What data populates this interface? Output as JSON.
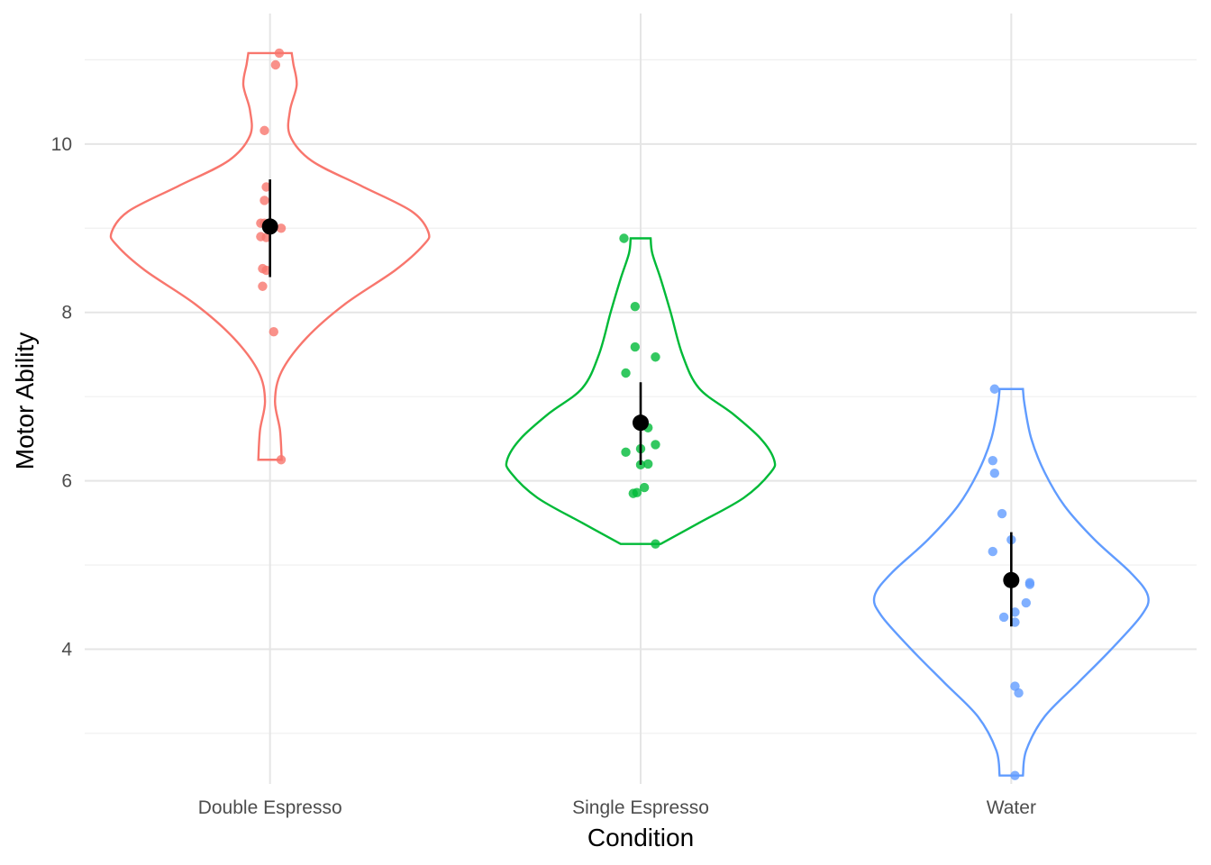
{
  "chart_data": {
    "type": "violin",
    "xlabel": "Condition",
    "ylabel": "Motor Ability",
    "ylim": [
      2.4,
      11.55
    ],
    "yticks": [
      4,
      6,
      8,
      10
    ],
    "grid": true,
    "legend": "none",
    "categories": [
      "Double Espresso",
      "Single Espresso",
      "Water"
    ],
    "series": [
      {
        "category": "Double Espresso",
        "color": "#F8766D",
        "min": 6.25,
        "max": 11.08,
        "density": [
          [
            6.25,
            0.07
          ],
          [
            6.6,
            0.06
          ],
          [
            6.95,
            0.03
          ],
          [
            7.3,
            0.07
          ],
          [
            7.7,
            0.22
          ],
          [
            8.1,
            0.45
          ],
          [
            8.5,
            0.75
          ],
          [
            8.8,
            0.92
          ],
          [
            8.95,
            0.95
          ],
          [
            9.2,
            0.85
          ],
          [
            9.5,
            0.55
          ],
          [
            9.8,
            0.25
          ],
          [
            10.1,
            0.12
          ],
          [
            10.4,
            0.12
          ],
          [
            10.7,
            0.16
          ],
          [
            10.95,
            0.14
          ],
          [
            11.08,
            0.13
          ]
        ],
        "points": [
          6.25,
          7.77,
          8.31,
          8.5,
          8.52,
          8.89,
          8.9,
          9.0,
          9.06,
          9.06,
          9.33,
          9.49,
          10.16,
          10.94,
          11.08
        ],
        "jitter": [
          0.03,
          0.01,
          -0.02,
          -0.01,
          -0.02,
          -0.01,
          -0.025,
          0.03,
          -0.025,
          -0.015,
          -0.015,
          -0.01,
          -0.015,
          0.015,
          0.025
        ],
        "mean": 9.02,
        "error": [
          8.42,
          9.58
        ]
      },
      {
        "category": "Single Espresso",
        "color": "#00BA38",
        "min": 5.25,
        "max": 8.88,
        "density": [
          [
            5.25,
            0.12
          ],
          [
            5.5,
            0.35
          ],
          [
            5.8,
            0.62
          ],
          [
            6.1,
            0.78
          ],
          [
            6.25,
            0.8
          ],
          [
            6.5,
            0.72
          ],
          [
            6.8,
            0.55
          ],
          [
            7.1,
            0.35
          ],
          [
            7.5,
            0.25
          ],
          [
            8.0,
            0.18
          ],
          [
            8.4,
            0.12
          ],
          [
            8.7,
            0.07
          ],
          [
            8.88,
            0.06
          ]
        ],
        "points": [
          5.25,
          5.85,
          5.86,
          5.92,
          6.19,
          6.2,
          6.34,
          6.38,
          6.43,
          6.63,
          7.28,
          7.47,
          7.59,
          8.07,
          8.88
        ],
        "jitter": [
          0.04,
          -0.02,
          -0.01,
          0.01,
          0.0,
          0.02,
          -0.04,
          0.0,
          0.04,
          0.02,
          -0.04,
          0.04,
          -0.015,
          -0.015,
          -0.045
        ],
        "mean": 6.69,
        "error": [
          6.19,
          7.17
        ]
      },
      {
        "category": "Water",
        "color": "#619CFF",
        "min": 2.5,
        "max": 7.09,
        "density": [
          [
            2.5,
            0.07
          ],
          [
            2.8,
            0.09
          ],
          [
            3.2,
            0.2
          ],
          [
            3.6,
            0.4
          ],
          [
            4.0,
            0.6
          ],
          [
            4.4,
            0.78
          ],
          [
            4.63,
            0.82
          ],
          [
            4.9,
            0.72
          ],
          [
            5.3,
            0.5
          ],
          [
            5.7,
            0.32
          ],
          [
            6.1,
            0.2
          ],
          [
            6.5,
            0.12
          ],
          [
            6.9,
            0.08
          ],
          [
            7.09,
            0.07
          ]
        ],
        "points": [
          2.5,
          3.48,
          3.56,
          4.32,
          4.38,
          4.44,
          4.55,
          4.77,
          4.79,
          5.16,
          5.3,
          5.61,
          6.09,
          6.24,
          7.09
        ],
        "jitter": [
          0.01,
          0.02,
          0.01,
          0.01,
          -0.02,
          0.01,
          0.04,
          0.05,
          0.05,
          -0.05,
          0.0,
          -0.025,
          -0.045,
          -0.05,
          -0.045
        ],
        "mean": 4.82,
        "error": [
          4.27,
          5.39
        ]
      }
    ]
  }
}
